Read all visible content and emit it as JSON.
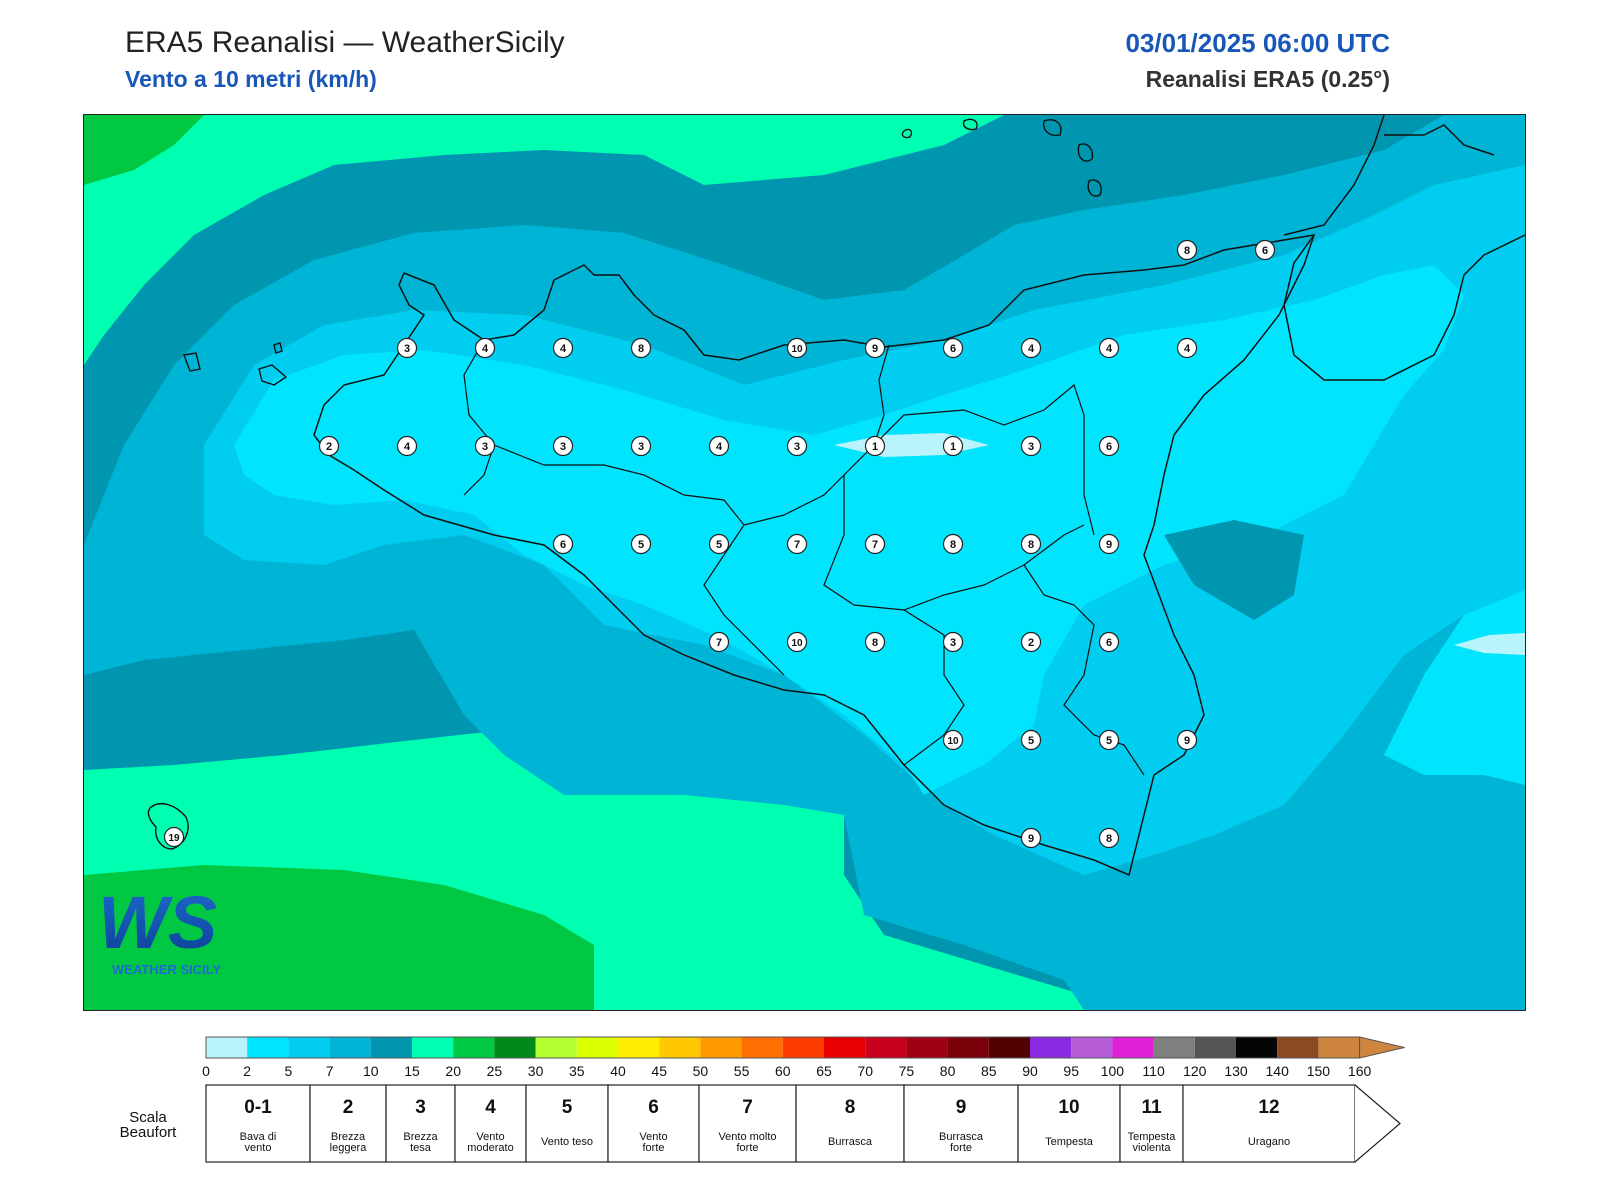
{
  "header": {
    "title": "ERA5 Reanalisi — WeatherSicily",
    "subtitle": "Vento a 10 metri (km/h)",
    "datetime": "03/01/2025 06:00 UTC",
    "source": "Reanalisi ERA5 (0.25°)"
  },
  "colors": {
    "c0": "#b9f4fc",
    "c2": "#00e4fd",
    "c5": "#00cdef",
    "c7": "#00b4d6",
    "c10": "#0096b0",
    "c15": "#00ffb0",
    "c20": "#00c843",
    "c25": "#008a1c",
    "coast": "#111111"
  },
  "colorbar": {
    "ticks": [
      "0",
      "2",
      "5",
      "7",
      "10",
      "15",
      "20",
      "25",
      "30",
      "35",
      "40",
      "45",
      "50",
      "55",
      "60",
      "65",
      "70",
      "75",
      "80",
      "85",
      "90",
      "95",
      "100",
      "110",
      "120",
      "130",
      "140",
      "150",
      "160"
    ],
    "colors": [
      "#b9f4fc",
      "#00e4fd",
      "#00cdef",
      "#00b4d6",
      "#0096b0",
      "#00ffb0",
      "#00c843",
      "#008a1c",
      "#b4ff32",
      "#dcff00",
      "#ffee00",
      "#ffc800",
      "#ff9b00",
      "#ff6e00",
      "#ff3c00",
      "#e80000",
      "#c8001e",
      "#a00014",
      "#7a000a",
      "#520000",
      "#8a2be2",
      "#b65bd6",
      "#e020d8",
      "#808080",
      "#555555",
      "#050505",
      "#8b4a22",
      "#cd853f"
    ]
  },
  "beaufort": {
    "title_line1": "Scala",
    "title_line2": "Beaufort",
    "levels": [
      {
        "num": "0-1",
        "l1": "Bava di",
        "l2": "vento"
      },
      {
        "num": "2",
        "l1": "Brezza",
        "l2": "leggera"
      },
      {
        "num": "3",
        "l1": "Brezza",
        "l2": "tesa"
      },
      {
        "num": "4",
        "l1": "Vento",
        "l2": "moderato"
      },
      {
        "num": "5",
        "l1": "Vento teso",
        "l2": ""
      },
      {
        "num": "6",
        "l1": "Vento",
        "l2": "forte"
      },
      {
        "num": "7",
        "l1": "Vento molto",
        "l2": "forte"
      },
      {
        "num": "8",
        "l1": "Burrasca",
        "l2": ""
      },
      {
        "num": "9",
        "l1": "Burrasca",
        "l2": "forte"
      },
      {
        "num": "10",
        "l1": "Tempesta",
        "l2": ""
      },
      {
        "num": "11",
        "l1": "Tempesta",
        "l2": "violenta"
      },
      {
        "num": "12",
        "l1": "Uragano",
        "l2": ""
      }
    ]
  },
  "logo": {
    "letters": "WS",
    "text": "WEATHER SICILY"
  },
  "stations": [
    "3",
    "4",
    "4",
    "8",
    "10",
    "9",
    "6",
    "4",
    "4",
    "4",
    "2",
    "4",
    "3",
    "3",
    "3",
    "4",
    "3",
    "1",
    "1",
    "3",
    "6",
    "6",
    "5",
    "5",
    "7",
    "7",
    "8",
    "8",
    "9",
    "7",
    "10",
    "8",
    "3",
    "2",
    "6",
    "10",
    "5",
    "5",
    "9",
    "9",
    "8",
    "19",
    "8",
    "6"
  ]
}
